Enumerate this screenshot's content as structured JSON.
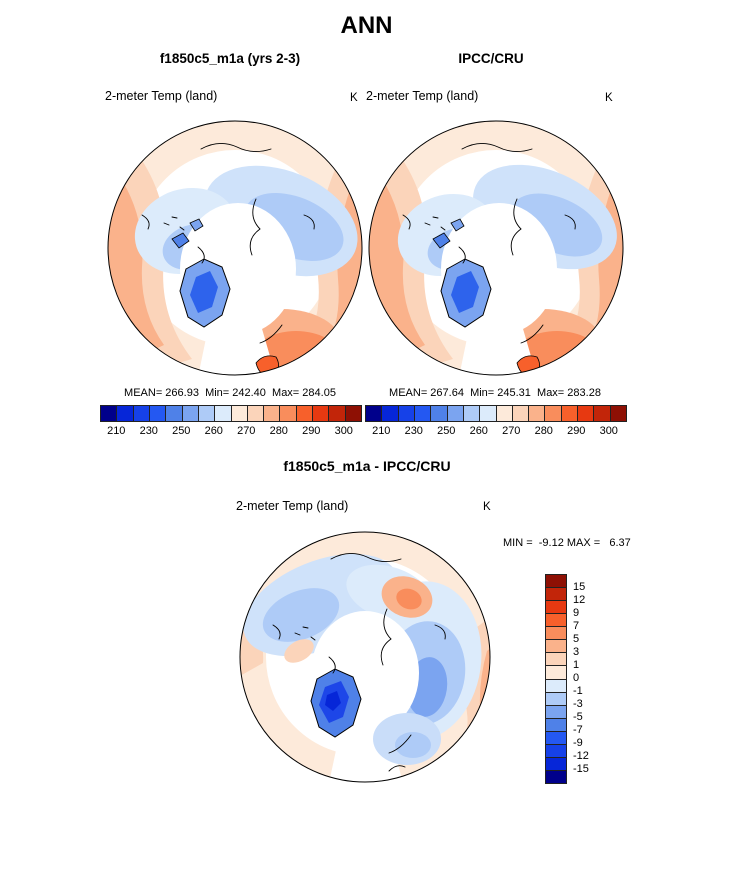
{
  "page": {
    "main_title": "ANN"
  },
  "panels": {
    "model": {
      "title": "f1850c5_m1a (yrs 2-3)",
      "field": "2-meter Temp (land)",
      "units": "K",
      "stats_line": "MEAN= 266.93  Min= 242.40  Max= 284.05"
    },
    "obs": {
      "title": "IPCC/CRU",
      "field": "2-meter Temp (land)",
      "units": "K",
      "stats_line": "MEAN= 267.64  Min= 245.31  Max= 283.28"
    },
    "diff": {
      "title": "f1850c5_m1a - IPCC/CRU",
      "field": "2-meter Temp (land)",
      "units": "K",
      "minmax_line": "MIN =  -9.12 MAX =   6.37"
    }
  },
  "colorbars": {
    "absolute": {
      "orientation": "horizontal",
      "tick_labels": [
        "210",
        "230",
        "250",
        "260",
        "270",
        "280",
        "290",
        "300"
      ],
      "palette_cold_to_warm": [
        "#00008b",
        "#0626d8",
        "#1641e8",
        "#2458f2",
        "#4f81e8",
        "#7ba4f0",
        "#aecbf7",
        "#dcebfb",
        "#fdeada",
        "#fbd4ba",
        "#fab28b",
        "#f98d5c",
        "#f7602b",
        "#e73911",
        "#c22509",
        "#8e1004"
      ]
    },
    "difference": {
      "orientation": "vertical",
      "tick_labels_top_to_bottom": [
        "15",
        "12",
        "9",
        "7",
        "5",
        "3",
        "1",
        "0",
        "-1",
        "-3",
        "-5",
        "-7",
        "-9",
        "-12",
        "-15"
      ],
      "palette_top_to_bottom": [
        "#8e1004",
        "#c22509",
        "#e73911",
        "#f7602b",
        "#f98d5c",
        "#fab28b",
        "#fbd4ba",
        "#fdeada",
        "#dcebfb",
        "#aecbf7",
        "#7ba4f0",
        "#4f81e8",
        "#2458f2",
        "#1641e8",
        "#0626d8",
        "#00008b"
      ]
    }
  },
  "chart_data": [
    {
      "type": "heatmap",
      "subtype": "north-polar-stereographic-map",
      "title": "f1850c5_m1a (yrs 2-3)",
      "variable": "2-meter Temp (land)",
      "units": "K",
      "season": "ANN",
      "stats": {
        "mean": 266.93,
        "min": 242.4,
        "max": 284.05
      },
      "colorbar_ticks": [
        210,
        230,
        250,
        260,
        270,
        280,
        290,
        300
      ],
      "legend_position": "bottom"
    },
    {
      "type": "heatmap",
      "subtype": "north-polar-stereographic-map",
      "title": "IPCC/CRU",
      "variable": "2-meter Temp (land)",
      "units": "K",
      "season": "ANN",
      "stats": {
        "mean": 267.64,
        "min": 245.31,
        "max": 283.28
      },
      "colorbar_ticks": [
        210,
        230,
        250,
        260,
        270,
        280,
        290,
        300
      ],
      "legend_position": "bottom"
    },
    {
      "type": "heatmap",
      "subtype": "north-polar-stereographic-map",
      "title": "f1850c5_m1a - IPCC/CRU",
      "variable": "2-meter Temp (land)",
      "units": "K",
      "season": "ANN",
      "stats": {
        "min": -9.12,
        "max": 6.37
      },
      "colorbar_ticks": [
        15,
        12,
        9,
        7,
        5,
        3,
        1,
        0,
        -1,
        -3,
        -5,
        -7,
        -9,
        -12,
        -15
      ],
      "legend_position": "right"
    }
  ]
}
